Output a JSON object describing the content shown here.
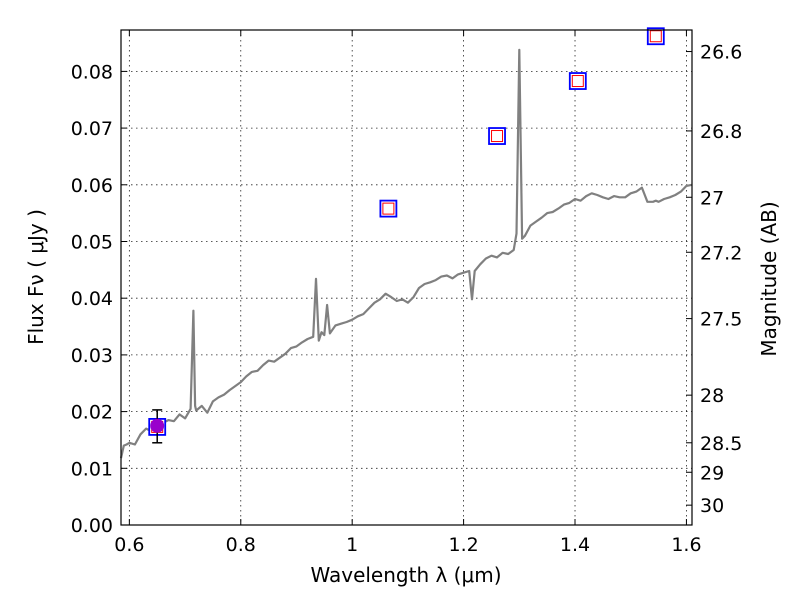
{
  "chart_data": {
    "type": "line",
    "title": "",
    "xlabel": "Wavelength  λ (μm)",
    "ylabel": "Flux  Fν  ( μJy )",
    "y2label": "Magnitude (AB)",
    "xlim": [
      0.585,
      1.61
    ],
    "ylim": [
      0.0,
      0.0873
    ],
    "xticks": [
      0.6,
      0.8,
      1.0,
      1.2,
      1.4,
      1.6
    ],
    "xtick_labels": [
      "0.6",
      "0.8",
      "1",
      "1.2",
      "1.4",
      "1.6"
    ],
    "yticks": [
      0.0,
      0.01,
      0.02,
      0.03,
      0.04,
      0.05,
      0.06,
      0.07,
      0.08
    ],
    "ytick_labels": [
      "0.00",
      "0.01",
      "0.02",
      "0.03",
      "0.04",
      "0.05",
      "0.06",
      "0.07",
      "0.08"
    ],
    "y2ticks": [
      {
        "label": "26.6",
        "flux": 0.0835
      },
      {
        "label": "26.8",
        "flux": 0.0695
      },
      {
        "label": "27",
        "flux": 0.0578
      },
      {
        "label": "27.2",
        "flux": 0.0481
      },
      {
        "label": "27.5",
        "flux": 0.0364
      },
      {
        "label": "28",
        "flux": 0.0229
      },
      {
        "label": "28.5",
        "flux": 0.0145
      },
      {
        "label": "29",
        "flux": 0.0093
      },
      {
        "label": "30",
        "flux": 0.0035
      }
    ],
    "grid": true,
    "colors": {
      "spectrum": "#808080",
      "square_outer": "#0000ff",
      "square_inner": "#ff0000",
      "observed_point": "#9900cc",
      "errorbar": "#000000"
    },
    "series": [
      {
        "kind": "spectrum",
        "x": [
          0.585,
          0.59,
          0.595,
          0.6,
          0.61,
          0.62,
          0.63,
          0.64,
          0.65,
          0.66,
          0.67,
          0.68,
          0.69,
          0.7,
          0.71,
          0.715,
          0.718,
          0.72,
          0.73,
          0.74,
          0.75,
          0.76,
          0.77,
          0.78,
          0.79,
          0.8,
          0.81,
          0.82,
          0.83,
          0.84,
          0.85,
          0.86,
          0.87,
          0.88,
          0.89,
          0.9,
          0.91,
          0.92,
          0.93,
          0.935,
          0.94,
          0.945,
          0.95,
          0.955,
          0.96,
          0.965,
          0.97,
          0.98,
          0.99,
          1.0,
          1.01,
          1.02,
          1.03,
          1.04,
          1.05,
          1.06,
          1.07,
          1.08,
          1.09,
          1.1,
          1.11,
          1.12,
          1.13,
          1.14,
          1.15,
          1.16,
          1.17,
          1.18,
          1.19,
          1.2,
          1.21,
          1.215,
          1.22,
          1.23,
          1.24,
          1.25,
          1.26,
          1.27,
          1.28,
          1.29,
          1.295,
          1.3,
          1.305,
          1.31,
          1.32,
          1.33,
          1.34,
          1.35,
          1.36,
          1.37,
          1.38,
          1.39,
          1.4,
          1.41,
          1.42,
          1.43,
          1.44,
          1.45,
          1.46,
          1.47,
          1.48,
          1.49,
          1.5,
          1.51,
          1.52,
          1.53,
          1.54,
          1.545,
          1.55,
          1.56,
          1.57,
          1.58,
          1.59,
          1.6,
          1.61
        ],
        "y": [
          0.0118,
          0.014,
          0.0142,
          0.0145,
          0.0142,
          0.016,
          0.017,
          0.0165,
          0.016,
          0.018,
          0.0185,
          0.0183,
          0.0195,
          0.0188,
          0.0205,
          0.0378,
          0.021,
          0.0202,
          0.021,
          0.0198,
          0.0218,
          0.0225,
          0.023,
          0.0238,
          0.0245,
          0.0252,
          0.0262,
          0.027,
          0.0272,
          0.0282,
          0.029,
          0.0288,
          0.0295,
          0.0302,
          0.0312,
          0.0315,
          0.0322,
          0.0328,
          0.0332,
          0.0434,
          0.0325,
          0.034,
          0.0335,
          0.0388,
          0.0338,
          0.0345,
          0.0352,
          0.0355,
          0.0358,
          0.0362,
          0.0368,
          0.0372,
          0.0382,
          0.0392,
          0.0398,
          0.0408,
          0.0402,
          0.0395,
          0.0398,
          0.0392,
          0.0402,
          0.0418,
          0.0425,
          0.0428,
          0.0432,
          0.0438,
          0.044,
          0.0435,
          0.0442,
          0.0445,
          0.0448,
          0.0398,
          0.0448,
          0.046,
          0.047,
          0.0475,
          0.0472,
          0.048,
          0.0478,
          0.0485,
          0.0514,
          0.0838,
          0.0505,
          0.051,
          0.0528,
          0.0535,
          0.0542,
          0.055,
          0.0552,
          0.0558,
          0.0565,
          0.0568,
          0.0575,
          0.0572,
          0.058,
          0.0585,
          0.0582,
          0.0578,
          0.0575,
          0.058,
          0.0578,
          0.0578,
          0.0585,
          0.0588,
          0.0595,
          0.057,
          0.057,
          0.0572,
          0.057,
          0.0575,
          0.0578,
          0.0582,
          0.0588,
          0.0598,
          0.06
        ]
      },
      {
        "kind": "model_photometry",
        "x": [
          0.65,
          1.065,
          1.26,
          1.405,
          1.545
        ],
        "y": [
          0.0173,
          0.0558,
          0.0686,
          0.0783,
          0.0862
        ]
      },
      {
        "kind": "observed",
        "x": [
          0.65
        ],
        "y": [
          0.0175
        ],
        "yerr_low": [
          0.003
        ],
        "yerr_high": [
          0.0028
        ]
      }
    ]
  }
}
